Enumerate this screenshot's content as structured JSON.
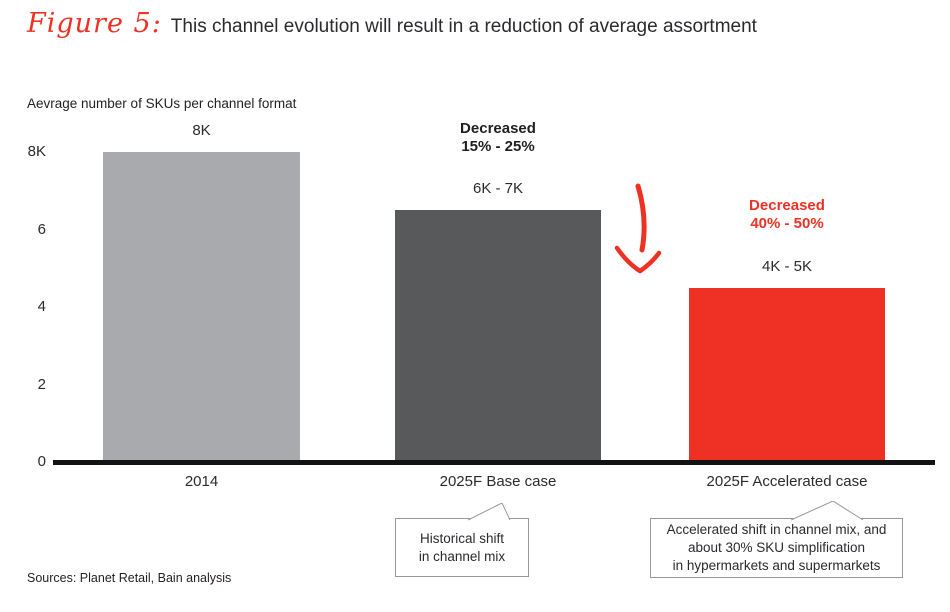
{
  "header": {
    "figure_label": "Figure 5:",
    "title": "This channel evolution will result in a reduction of average assortment"
  },
  "chart_data": {
    "type": "bar",
    "title": "Aevrage number of SKUs per channel format",
    "categories": [
      "2014",
      "2025F Base case",
      "2025F Accelerated case"
    ],
    "values": [
      8000,
      6500,
      4500
    ],
    "value_labels": [
      "8K",
      "6K - 7K",
      "4K - 5K"
    ],
    "bar_colors": [
      "#a8aaad",
      "#58595b",
      "#ee3124"
    ],
    "ylim": [
      0,
      8000
    ],
    "yticks": [
      {
        "value": 0,
        "label": "0"
      },
      {
        "value": 2000,
        "label": "2"
      },
      {
        "value": 4000,
        "label": "4"
      },
      {
        "value": 6000,
        "label": "6"
      },
      {
        "value": 8000,
        "label": "8K"
      }
    ],
    "grid": false,
    "legend": null,
    "annotations": [
      {
        "bar_index": 1,
        "lines": [
          "Decreased",
          "15% - 25%"
        ],
        "color": "#1f1f1f"
      },
      {
        "bar_index": 2,
        "lines": [
          "Decreased",
          "40% - 50%"
        ],
        "color": "#ee3124"
      }
    ],
    "arrow": {
      "shape": "hand-drawn-down-arrow",
      "color": "#ee3124"
    },
    "callouts": [
      {
        "target": "2025F Base case",
        "lines": [
          "Historical shift",
          "in channel mix"
        ]
      },
      {
        "target": "2025F Accelerated case",
        "lines": [
          "Accelerated shift in channel mix, and",
          "about 30% SKU simplification",
          "in hypermarkets and supermarkets"
        ]
      }
    ]
  },
  "footer": {
    "sources": "Sources: Planet Retail, Bain analysis"
  }
}
